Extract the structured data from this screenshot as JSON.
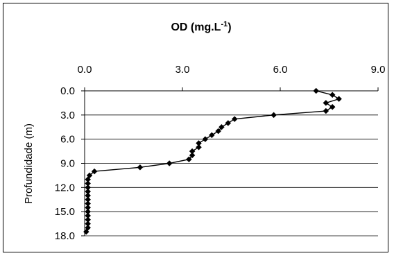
{
  "chart_data": {
    "type": "line",
    "title": {
      "main": "OD (mg.L",
      "superscript": "-1",
      "close": ")"
    },
    "xlabel": "",
    "ylabel": "Profundidade (m)",
    "xlim": [
      0,
      9
    ],
    "ylim": [
      18,
      0
    ],
    "x_axis_position": "top",
    "y_axis_inverted": true,
    "xticks": [
      0,
      3,
      6,
      9
    ],
    "xtick_labels": [
      "0.0",
      "3.0",
      "6.0",
      "9.0"
    ],
    "yticks": [
      0,
      3,
      6,
      9,
      12,
      15,
      18
    ],
    "ytick_labels": [
      "0.0",
      "3.0",
      "6.0",
      "9.0",
      "12.0",
      "15.0",
      "18.0"
    ],
    "grid": {
      "horizontal": true,
      "vertical": false
    },
    "legend": "none",
    "marker": "diamond",
    "line_color": "#000000",
    "series": [
      {
        "points": [
          {
            "x": 7.1,
            "y": 0.0
          },
          {
            "x": 7.6,
            "y": 0.5
          },
          {
            "x": 7.8,
            "y": 1.0
          },
          {
            "x": 7.4,
            "y": 1.5
          },
          {
            "x": 7.6,
            "y": 2.0
          },
          {
            "x": 7.4,
            "y": 2.5
          },
          {
            "x": 5.8,
            "y": 3.0
          },
          {
            "x": 4.6,
            "y": 3.5
          },
          {
            "x": 4.4,
            "y": 4.0
          },
          {
            "x": 4.2,
            "y": 4.5
          },
          {
            "x": 4.1,
            "y": 5.0
          },
          {
            "x": 3.9,
            "y": 5.5
          },
          {
            "x": 3.7,
            "y": 6.0
          },
          {
            "x": 3.5,
            "y": 6.5
          },
          {
            "x": 3.5,
            "y": 7.0
          },
          {
            "x": 3.3,
            "y": 7.5
          },
          {
            "x": 3.3,
            "y": 8.0
          },
          {
            "x": 3.2,
            "y": 8.5
          },
          {
            "x": 2.6,
            "y": 9.0
          },
          {
            "x": 1.7,
            "y": 9.5
          },
          {
            "x": 0.3,
            "y": 10.0
          },
          {
            "x": 0.15,
            "y": 10.5
          },
          {
            "x": 0.1,
            "y": 11.0
          },
          {
            "x": 0.1,
            "y": 11.5
          },
          {
            "x": 0.1,
            "y": 12.0
          },
          {
            "x": 0.1,
            "y": 12.5
          },
          {
            "x": 0.1,
            "y": 13.0
          },
          {
            "x": 0.1,
            "y": 13.5
          },
          {
            "x": 0.1,
            "y": 14.0
          },
          {
            "x": 0.1,
            "y": 14.5
          },
          {
            "x": 0.1,
            "y": 15.0
          },
          {
            "x": 0.1,
            "y": 15.5
          },
          {
            "x": 0.1,
            "y": 16.0
          },
          {
            "x": 0.1,
            "y": 16.5
          },
          {
            "x": 0.1,
            "y": 17.0
          },
          {
            "x": 0.05,
            "y": 17.5
          }
        ]
      }
    ]
  }
}
